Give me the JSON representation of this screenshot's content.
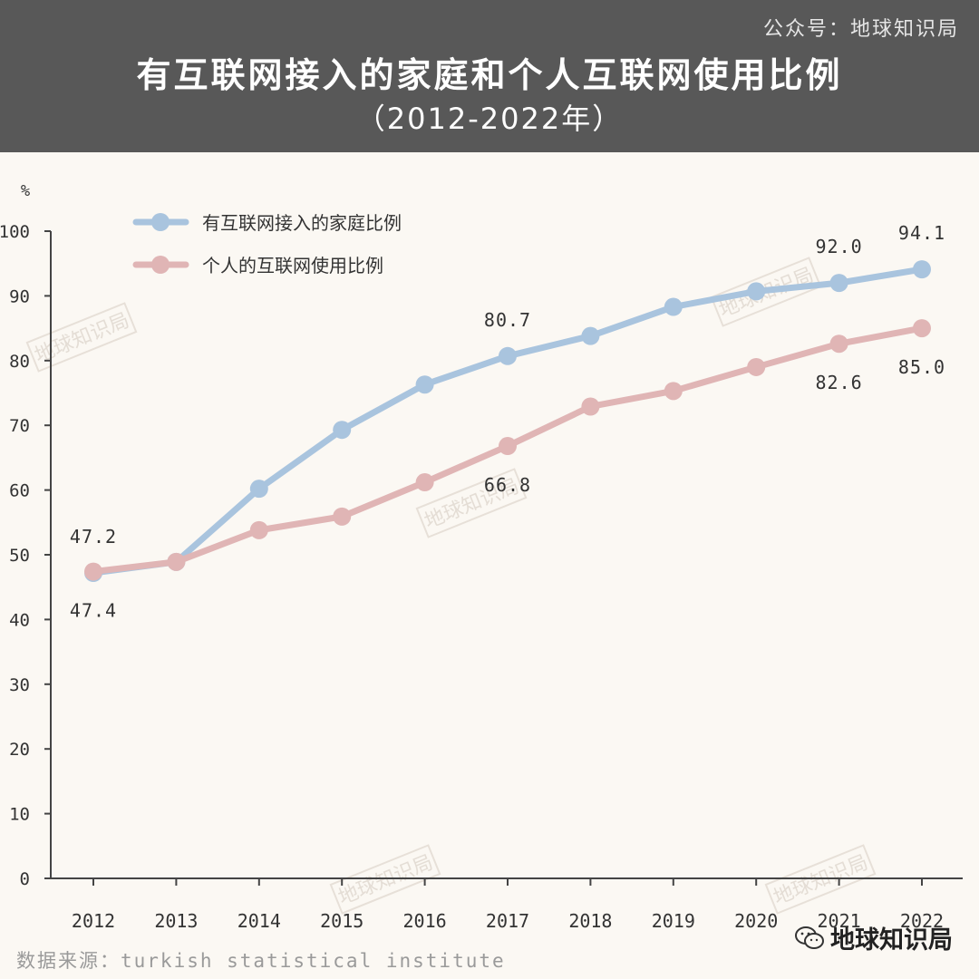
{
  "header": {
    "account": "公众号：地球知识局",
    "title": "有互联网接入的家庭和个人互联网使用比例",
    "subtitle": "（2012-2022年）"
  },
  "footer": {
    "source": "数据来源：turkish statistical institute",
    "brand": "地球知识局"
  },
  "watermark": "地球知识局",
  "icons": {
    "brand": "wechat-icon"
  },
  "chart_data": {
    "type": "line",
    "unit_label": "%",
    "x": [
      "2012",
      "2013",
      "2014",
      "2015",
      "2016",
      "2017",
      "2018",
      "2019",
      "2020",
      "2021",
      "2022"
    ],
    "ylim": [
      0,
      100
    ],
    "yticks": [
      0,
      10,
      20,
      30,
      40,
      50,
      60,
      70,
      80,
      90,
      100
    ],
    "grid": false,
    "legend_position": "top-left",
    "series": [
      {
        "name": "有互联网接入的家庭比例",
        "color": "#a9c4de",
        "values": [
          47.2,
          48.9,
          60.2,
          69.3,
          76.3,
          80.7,
          83.8,
          88.3,
          90.7,
          92.0,
          94.1
        ]
      },
      {
        "name": "个人的互联网使用比例",
        "color": "#e0b5b5",
        "values": [
          47.4,
          48.9,
          53.8,
          55.9,
          61.2,
          66.8,
          72.9,
          75.3,
          79.0,
          82.6,
          85.0
        ]
      }
    ],
    "annotations": [
      {
        "series": 0,
        "index": 0,
        "text": "47.2",
        "pos": "above"
      },
      {
        "series": 0,
        "index": 5,
        "text": "80.7",
        "pos": "above"
      },
      {
        "series": 0,
        "index": 9,
        "text": "92.0",
        "pos": "above"
      },
      {
        "series": 0,
        "index": 10,
        "text": "94.1",
        "pos": "above"
      },
      {
        "series": 1,
        "index": 0,
        "text": "47.4",
        "pos": "below"
      },
      {
        "series": 1,
        "index": 5,
        "text": "66.8",
        "pos": "below"
      },
      {
        "series": 1,
        "index": 9,
        "text": "82.6",
        "pos": "below"
      },
      {
        "series": 1,
        "index": 10,
        "text": "85.0",
        "pos": "below"
      }
    ]
  }
}
